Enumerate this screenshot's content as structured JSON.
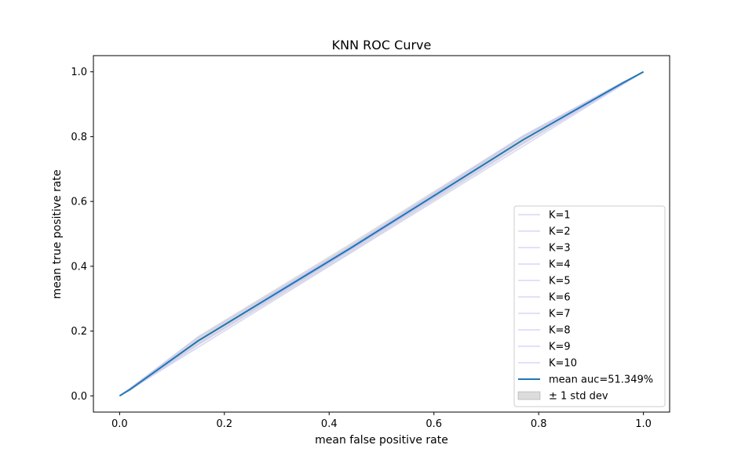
{
  "chart_data": {
    "type": "line",
    "title": "KNN ROC Curve",
    "xlabel": "mean false positive rate",
    "ylabel": "mean true positive rate",
    "xlim": [
      -0.05,
      1.05
    ],
    "ylim": [
      -0.05,
      1.05
    ],
    "xticks": [
      0.0,
      0.2,
      0.4,
      0.6,
      0.8,
      1.0
    ],
    "yticks": [
      0.0,
      0.2,
      0.4,
      0.6,
      0.8,
      1.0
    ],
    "xtick_labels": [
      "0.0",
      "0.2",
      "0.4",
      "0.6",
      "0.8",
      "1.0"
    ],
    "ytick_labels": [
      "0.0",
      "0.2",
      "0.4",
      "0.6",
      "0.8",
      "1.0"
    ],
    "grid": false,
    "legend_position": "lower-right",
    "series": [
      {
        "name": "K=1",
        "color": "#c9c9f5",
        "x": [
          0.0,
          1.0
        ],
        "y": [
          0.0,
          1.0
        ]
      },
      {
        "name": "K=2",
        "color": "#c9c9f5",
        "x": [
          0.0,
          0.15,
          0.44,
          0.77,
          1.0
        ],
        "y": [
          0.0,
          0.16,
          0.45,
          0.78,
          1.0
        ]
      },
      {
        "name": "K=3",
        "color": "#c9c9f5",
        "x": [
          0.0,
          0.15,
          0.45,
          0.77,
          1.0
        ],
        "y": [
          0.0,
          0.17,
          0.47,
          0.8,
          1.0
        ]
      },
      {
        "name": "K=4",
        "color": "#c9c9f5",
        "x": [
          0.0,
          0.15,
          0.45,
          0.77,
          1.0
        ],
        "y": [
          0.0,
          0.17,
          0.46,
          0.79,
          1.0
        ]
      },
      {
        "name": "K=5",
        "color": "#c9c9f5",
        "x": [
          0.0,
          0.15,
          0.45,
          0.77,
          1.0
        ],
        "y": [
          0.0,
          0.18,
          0.47,
          0.8,
          1.0
        ]
      },
      {
        "name": "K=6",
        "color": "#c9c9f5",
        "x": [
          0.0,
          0.15,
          0.45,
          0.77,
          1.0
        ],
        "y": [
          0.0,
          0.17,
          0.46,
          0.79,
          1.0
        ]
      },
      {
        "name": "K=7",
        "color": "#c9c9f5",
        "x": [
          0.0,
          0.15,
          0.45,
          0.77,
          1.0
        ],
        "y": [
          0.0,
          0.17,
          0.47,
          0.8,
          1.0
        ]
      },
      {
        "name": "K=8",
        "color": "#c9c9f5",
        "x": [
          0.0,
          0.15,
          0.45,
          0.77,
          1.0
        ],
        "y": [
          0.0,
          0.17,
          0.46,
          0.79,
          1.0
        ]
      },
      {
        "name": "K=9",
        "color": "#c9c9f5",
        "x": [
          0.0,
          0.15,
          0.45,
          0.77,
          1.0
        ],
        "y": [
          0.0,
          0.17,
          0.47,
          0.8,
          1.0
        ]
      },
      {
        "name": "K=10",
        "color": "#c9c9f5",
        "x": [
          0.0,
          0.15,
          0.45,
          0.77,
          1.0
        ],
        "y": [
          0.0,
          0.17,
          0.46,
          0.79,
          1.0
        ]
      },
      {
        "name": "mean auc=51.349%",
        "color": "#1f77b4",
        "x": [
          0.0,
          0.02,
          0.15,
          0.44,
          0.77,
          0.96,
          1.0
        ],
        "y": [
          0.0,
          0.02,
          0.17,
          0.455,
          0.79,
          0.965,
          1.0
        ]
      }
    ],
    "std_band": {
      "name": "± 1 std dev",
      "color": "#bfbfbf",
      "x": [
        0.0,
        0.02,
        0.15,
        0.44,
        0.77,
        0.96,
        1.0
      ],
      "lower": [
        0.0,
        0.015,
        0.155,
        0.44,
        0.775,
        0.96,
        1.0
      ],
      "upper": [
        0.0,
        0.025,
        0.185,
        0.47,
        0.805,
        0.97,
        1.0
      ]
    }
  }
}
